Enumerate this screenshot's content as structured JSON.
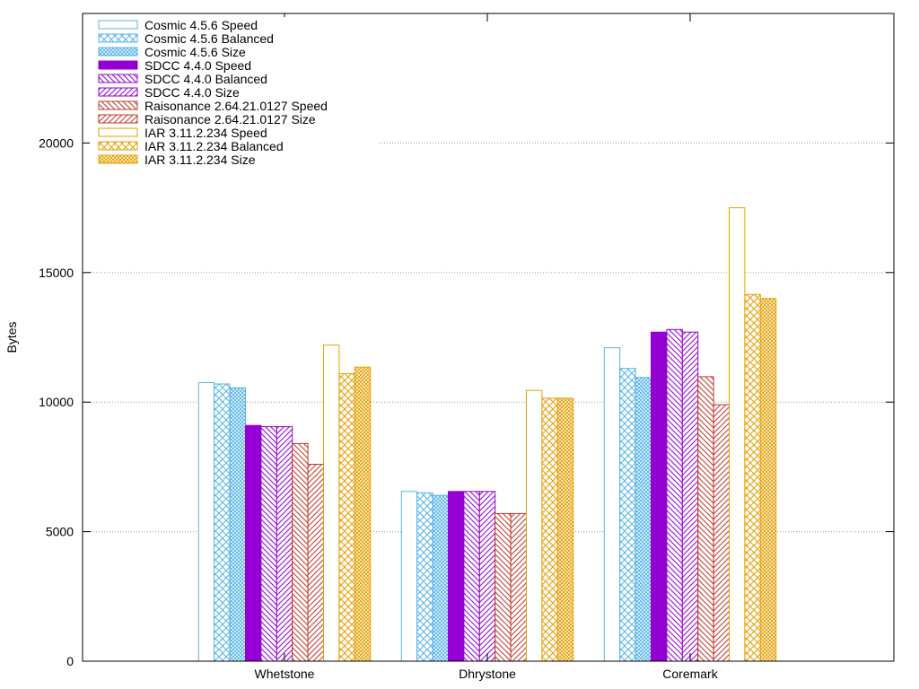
{
  "chart_data": {
    "type": "bar",
    "categories": [
      "Whetstone",
      "Dhrystone",
      "Coremark"
    ],
    "ylabel": "Bytes",
    "ylim": [
      0,
      25000
    ],
    "yticks": [
      0,
      5000,
      10000,
      15000,
      20000
    ],
    "grid": "horizontal dotted",
    "legend_position": "top-left",
    "series": [
      {
        "name": "Cosmic 4.5.6 Speed",
        "values": [
          10750,
          6550,
          12100
        ],
        "color": "#56b4e9",
        "pattern": "empty"
      },
      {
        "name": "Cosmic 4.5.6 Balanced",
        "values": [
          10700,
          6500,
          11300
        ],
        "color": "#56b4e9",
        "pattern": "crosshatch"
      },
      {
        "name": "Cosmic 4.5.6 Size",
        "values": [
          10550,
          6400,
          10950
        ],
        "color": "#56b4e9",
        "pattern": "finegrid"
      },
      {
        "name": "SDCC 4.4.0 Speed",
        "values": [
          9100,
          6550,
          12700
        ],
        "color": "#9400d3",
        "pattern": "solid"
      },
      {
        "name": "SDCC 4.4.0 Balanced",
        "values": [
          9050,
          6550,
          12800
        ],
        "color": "#9400d3",
        "pattern": "backslash"
      },
      {
        "name": "SDCC 4.4.0 Size",
        "values": [
          9050,
          6550,
          12700
        ],
        "color": "#9400d3",
        "pattern": "slash"
      },
      {
        "name": "Raisonance 2.64.21.0127 Speed",
        "values": [
          8400,
          5700,
          10980
        ],
        "color": "#c0392b",
        "pattern": "backslash"
      },
      {
        "name": "Raisonance 2.64.21.0127 Size",
        "values": [
          7600,
          5700,
          9900
        ],
        "color": "#c0392b",
        "pattern": "slash"
      },
      {
        "name": "IAR 3.11.2.234 Speed",
        "values": [
          12200,
          10450,
          17500
        ],
        "color": "#e69f00",
        "pattern": "empty"
      },
      {
        "name": "IAR 3.11.2.234 Balanced",
        "values": [
          11100,
          10150,
          14150
        ],
        "color": "#e69f00",
        "pattern": "crosshatch"
      },
      {
        "name": "IAR 3.11.2.234 Size",
        "values": [
          11350,
          10150,
          14000
        ],
        "color": "#e69f00",
        "pattern": "finegrid"
      }
    ]
  }
}
